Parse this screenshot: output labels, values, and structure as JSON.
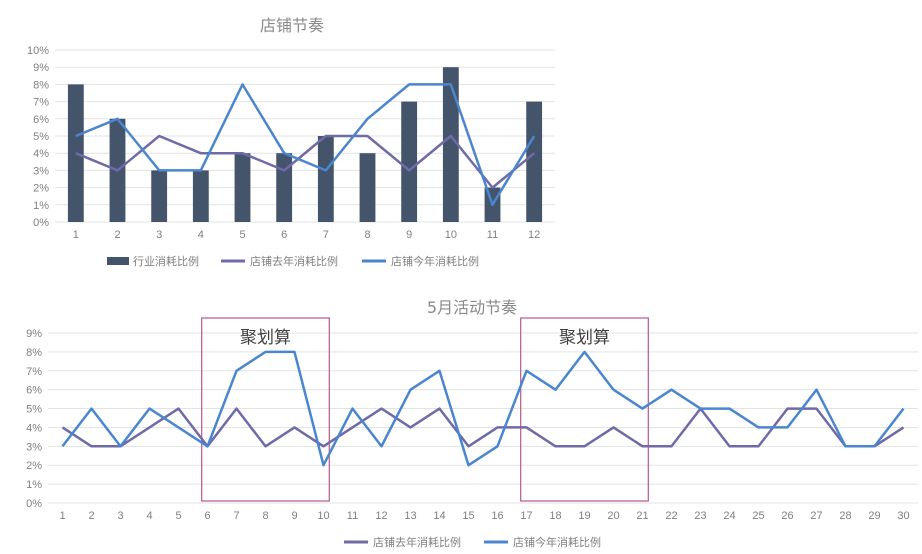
{
  "colors": {
    "industry": "#44546a",
    "last_year": "#6f6aa8",
    "this_year": "#4a86cf",
    "box": "#b5588f"
  },
  "chart_data": [
    {
      "type": "bar",
      "title": "店铺节奏",
      "categories": [
        "1",
        "2",
        "3",
        "4",
        "5",
        "6",
        "7",
        "8",
        "9",
        "10",
        "11",
        "12"
      ],
      "y_ticks": [
        "0%",
        "1%",
        "2%",
        "3%",
        "4%",
        "5%",
        "6%",
        "7%",
        "8%",
        "9%",
        "10%"
      ],
      "ylim": [
        0,
        10
      ],
      "grid": true,
      "legend_position": "bottom",
      "series": [
        {
          "name": "行业消耗比例",
          "kind": "bar",
          "values": [
            8,
            6,
            3,
            3,
            4,
            4,
            5,
            4,
            7,
            9,
            2,
            7
          ]
        },
        {
          "name": "店铺去年消耗比例",
          "kind": "line",
          "values": [
            4,
            3,
            5,
            4,
            4,
            3,
            5,
            5,
            3,
            5,
            2,
            4
          ]
        },
        {
          "name": "店铺今年消耗比例",
          "kind": "line",
          "values": [
            5,
            6,
            3,
            3,
            8,
            4,
            3,
            6,
            8,
            8,
            1,
            5
          ]
        }
      ]
    },
    {
      "type": "line",
      "title": "5月活动节奏",
      "categories": [
        "1",
        "2",
        "3",
        "4",
        "5",
        "6",
        "7",
        "8",
        "9",
        "10",
        "11",
        "12",
        "13",
        "14",
        "15",
        "16",
        "17",
        "18",
        "19",
        "20",
        "21",
        "22",
        "23",
        "24",
        "25",
        "26",
        "27",
        "28",
        "29",
        "30"
      ],
      "y_ticks": [
        "0%",
        "1%",
        "2%",
        "3%",
        "4%",
        "5%",
        "6%",
        "7%",
        "8%",
        "9%"
      ],
      "ylim": [
        0,
        9
      ],
      "grid": true,
      "legend_position": "bottom",
      "series": [
        {
          "name": "店铺去年消耗比例",
          "values": [
            4,
            3,
            3,
            4,
            5,
            3,
            5,
            3,
            4,
            3,
            4,
            5,
            4,
            5,
            3,
            4,
            4,
            3,
            3,
            4,
            3,
            3,
            5,
            3,
            3,
            5,
            5,
            3,
            3,
            4
          ]
        },
        {
          "name": "店铺今年消耗比例",
          "values": [
            3,
            5,
            3,
            5,
            4,
            3,
            7,
            8,
            8,
            2,
            5,
            3,
            6,
            7,
            2,
            3,
            7,
            6,
            8,
            6,
            5,
            6,
            5,
            5,
            4,
            4,
            6,
            3,
            3,
            5
          ]
        }
      ],
      "annotations": [
        {
          "label": "聚划算",
          "from": 6,
          "to": 10
        },
        {
          "label": "聚划算",
          "from": 17,
          "to": 21
        }
      ]
    }
  ]
}
